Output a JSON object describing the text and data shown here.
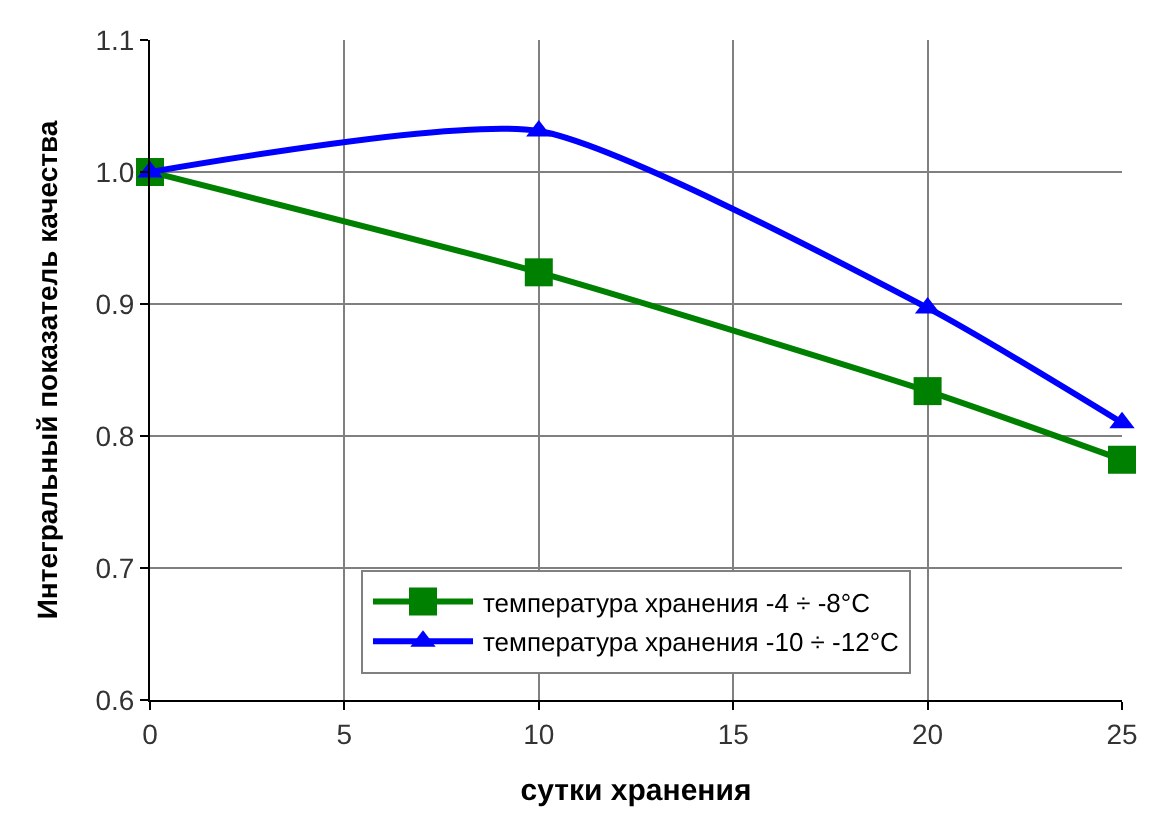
{
  "chart_data": {
    "type": "line",
    "xlabel": "сутки хранения",
    "ylabel": "Интегральный показатель качества",
    "x": [
      0,
      10,
      20,
      25
    ],
    "series": [
      {
        "name": "температура хранения -4 ÷ -8°C",
        "color": "#008000",
        "marker": "square",
        "values": [
          1.0,
          0.924,
          0.834,
          0.782
        ]
      },
      {
        "name": "температура хранения -10 ÷ -12°C",
        "color": "#0000ff",
        "marker": "triangle",
        "values": [
          1.0,
          1.031,
          0.897,
          0.81
        ]
      }
    ],
    "xlim": [
      0,
      25
    ],
    "xticks": [
      0,
      5,
      10,
      15,
      20,
      25
    ],
    "ylim": [
      0.6,
      1.1
    ],
    "yticks": [
      {
        "value": 0.6,
        "label": "0.6"
      },
      {
        "value": 0.7,
        "label": "0.7"
      },
      {
        "value": 0.8,
        "label": "0.8"
      },
      {
        "value": 0.9,
        "label": "0.9"
      },
      {
        "value": 1.0,
        "label": "1.0"
      },
      {
        "value": 1.1,
        "label": "1.1"
      }
    ],
    "grid": true,
    "legend": "bottom",
    "line_style": "solid"
  }
}
